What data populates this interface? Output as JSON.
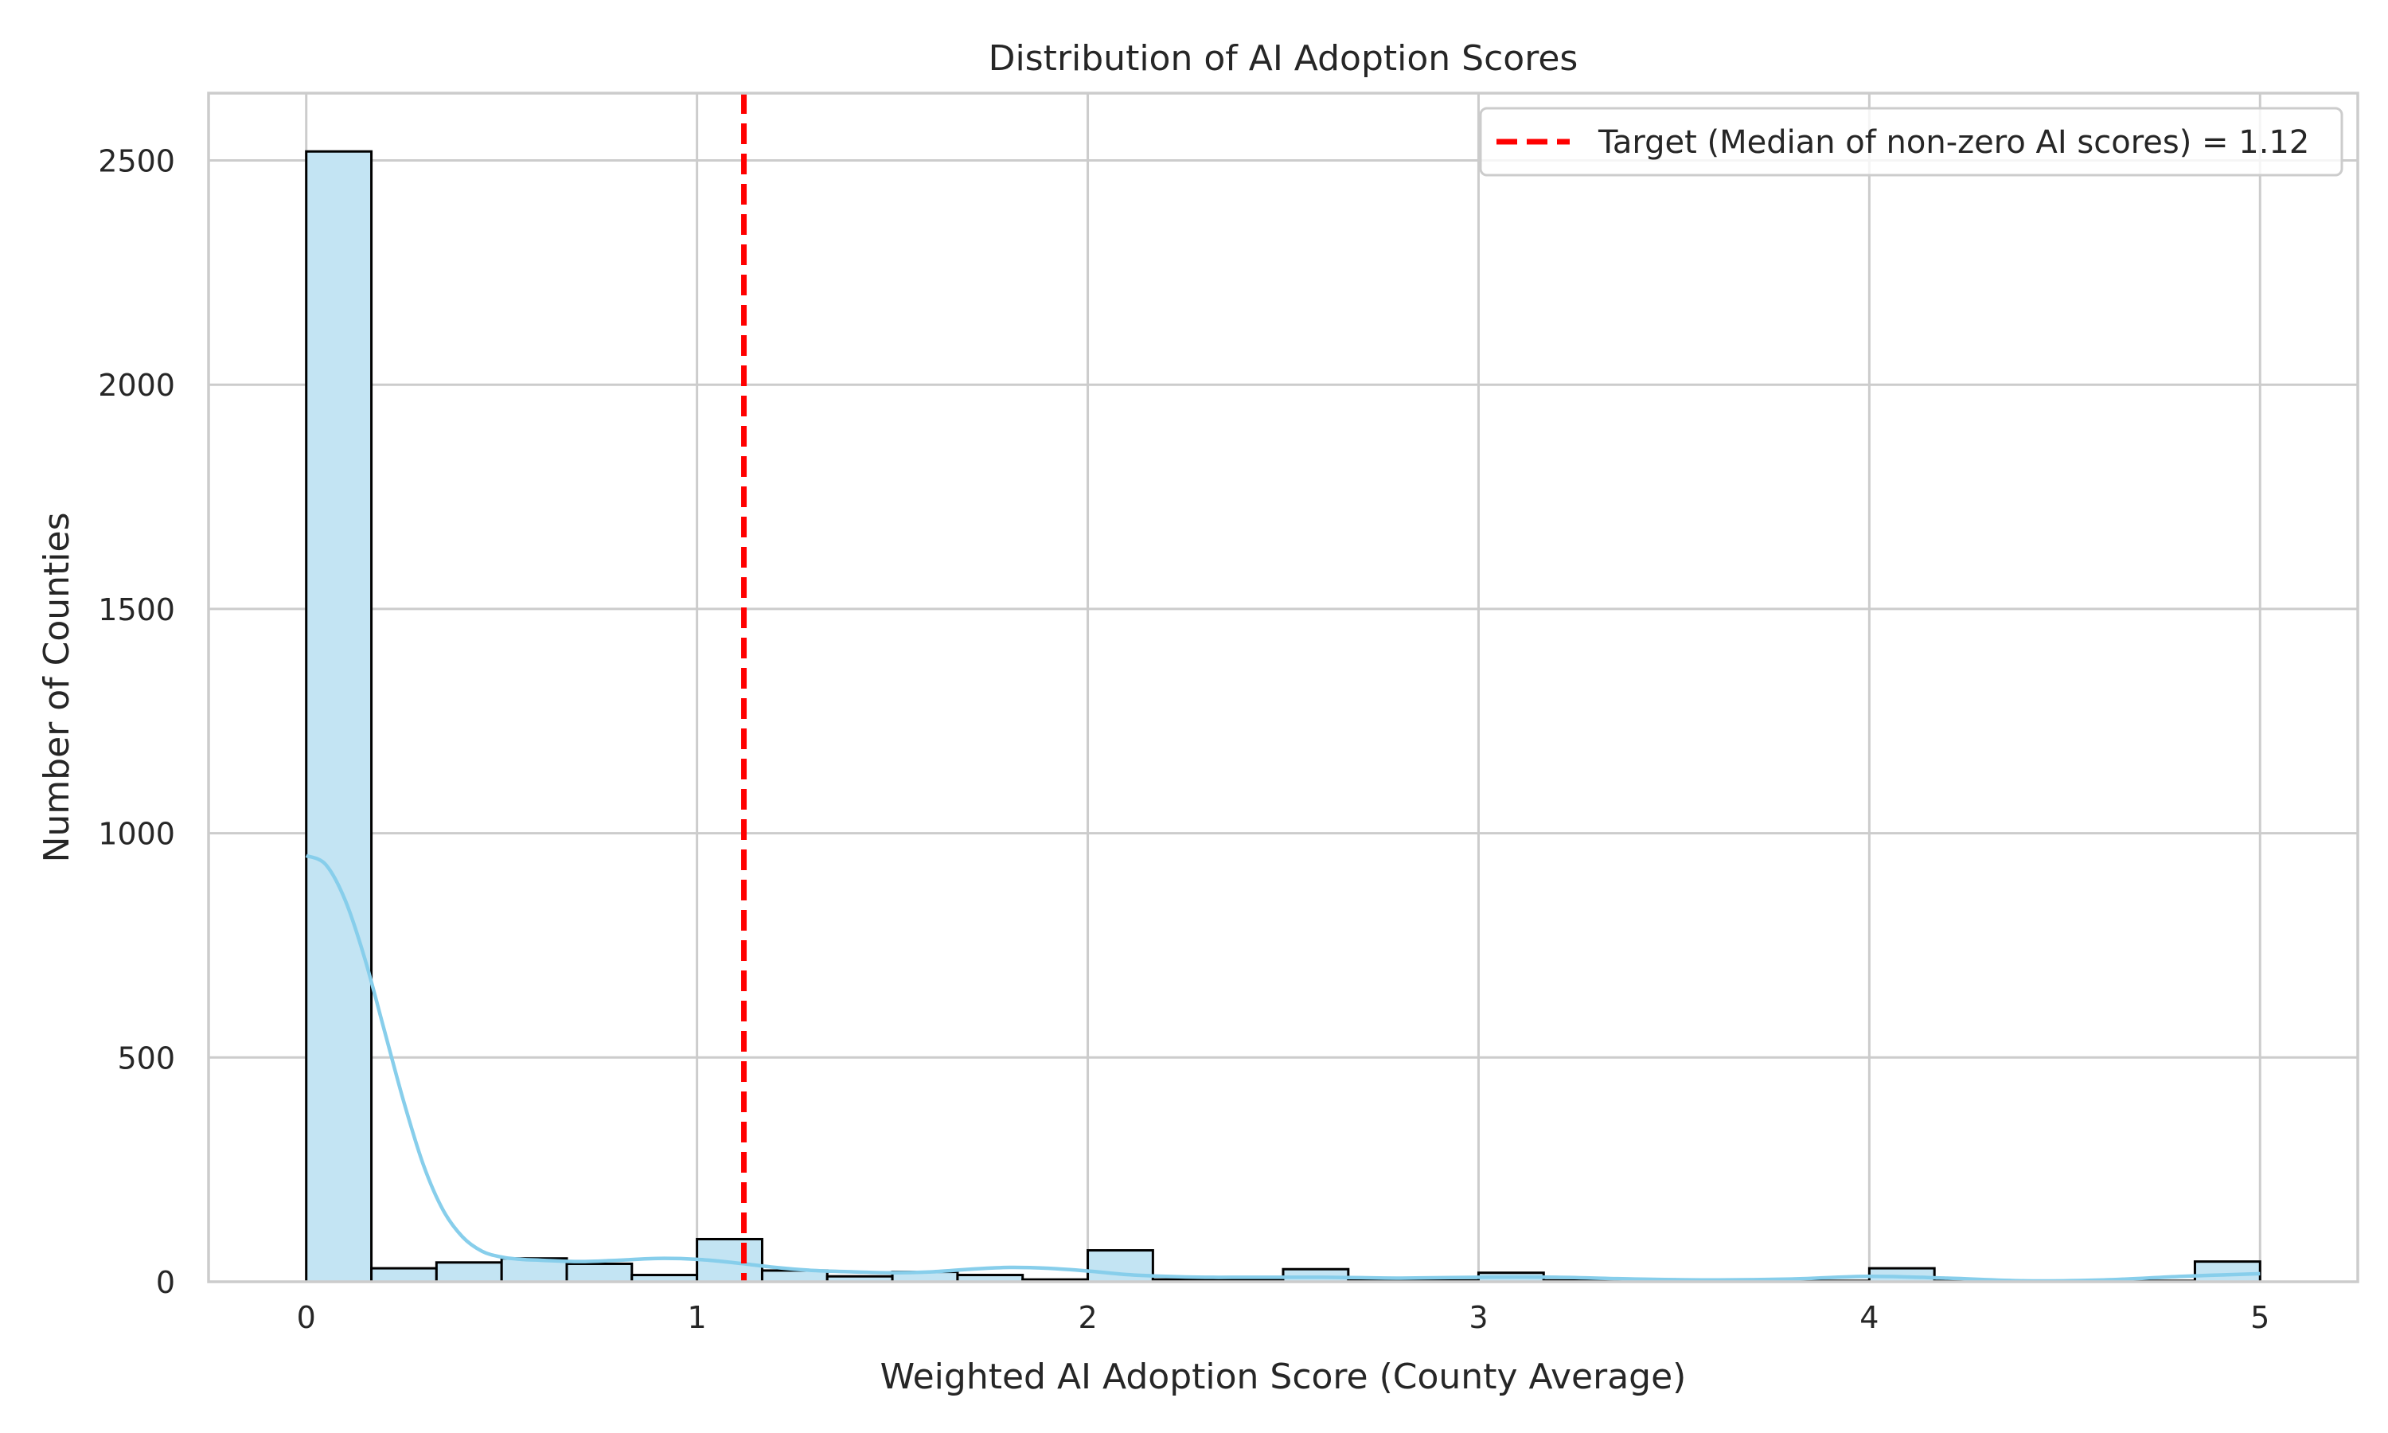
{
  "chart_data": {
    "type": "bar",
    "title": "Distribution of AI Adoption Scores",
    "xlabel": "Weighted AI Adoption Score (County Average)",
    "ylabel": "Number of Counties",
    "xlim": [
      -0.25,
      5.25
    ],
    "ylim": [
      0,
      2650
    ],
    "x_ticks": [
      0,
      1,
      2,
      3,
      4,
      5
    ],
    "y_ticks": [
      0,
      500,
      1000,
      1500,
      2000,
      2500
    ],
    "grid": true,
    "bin_width": 0.1667,
    "bins": [
      {
        "x0": 0.0,
        "x1": 0.1667,
        "count": 2520
      },
      {
        "x0": 0.1667,
        "x1": 0.3333,
        "count": 30
      },
      {
        "x0": 0.3333,
        "x1": 0.5,
        "count": 43
      },
      {
        "x0": 0.5,
        "x1": 0.6667,
        "count": 52
      },
      {
        "x0": 0.6667,
        "x1": 0.8333,
        "count": 40
      },
      {
        "x0": 0.8333,
        "x1": 1.0,
        "count": 15
      },
      {
        "x0": 1.0,
        "x1": 1.1667,
        "count": 95
      },
      {
        "x0": 1.1667,
        "x1": 1.3333,
        "count": 25
      },
      {
        "x0": 1.3333,
        "x1": 1.5,
        "count": 12
      },
      {
        "x0": 1.5,
        "x1": 1.6667,
        "count": 22
      },
      {
        "x0": 1.6667,
        "x1": 1.8333,
        "count": 15
      },
      {
        "x0": 1.8333,
        "x1": 2.0,
        "count": 5
      },
      {
        "x0": 2.0,
        "x1": 2.1667,
        "count": 70
      },
      {
        "x0": 2.1667,
        "x1": 2.3333,
        "count": 5
      },
      {
        "x0": 2.3333,
        "x1": 2.5,
        "count": 5
      },
      {
        "x0": 2.5,
        "x1": 2.6667,
        "count": 28
      },
      {
        "x0": 2.6667,
        "x1": 2.8333,
        "count": 3
      },
      {
        "x0": 2.8333,
        "x1": 3.0,
        "count": 3
      },
      {
        "x0": 3.0,
        "x1": 3.1667,
        "count": 20
      },
      {
        "x0": 3.1667,
        "x1": 3.3333,
        "count": 3
      },
      {
        "x0": 3.3333,
        "x1": 3.5,
        "count": 5
      },
      {
        "x0": 3.5,
        "x1": 3.6667,
        "count": 2
      },
      {
        "x0": 3.6667,
        "x1": 3.8333,
        "count": 2
      },
      {
        "x0": 3.8333,
        "x1": 4.0,
        "count": 2
      },
      {
        "x0": 4.0,
        "x1": 4.1667,
        "count": 30
      },
      {
        "x0": 4.1667,
        "x1": 4.3333,
        "count": 2
      },
      {
        "x0": 4.3333,
        "x1": 4.5,
        "count": 2
      },
      {
        "x0": 4.5,
        "x1": 4.6667,
        "count": 2
      },
      {
        "x0": 4.6667,
        "x1": 4.8333,
        "count": 2
      },
      {
        "x0": 4.8333,
        "x1": 5.0,
        "count": 45
      }
    ],
    "kde": {
      "x": [
        0.0,
        0.05,
        0.1,
        0.15,
        0.2,
        0.25,
        0.3,
        0.35,
        0.4,
        0.45,
        0.5,
        0.55,
        0.6,
        0.7,
        0.8,
        0.9,
        1.0,
        1.1,
        1.2,
        1.3,
        1.4,
        1.5,
        1.6,
        1.7,
        1.8,
        1.9,
        2.0,
        2.1,
        2.2,
        2.3,
        2.4,
        2.5,
        2.6,
        2.7,
        2.8,
        3.0,
        3.2,
        3.4,
        3.6,
        3.8,
        4.0,
        4.2,
        4.4,
        4.6,
        4.8,
        5.0
      ],
      "y": [
        950,
        930,
        850,
        720,
        560,
        400,
        260,
        160,
        100,
        68,
        55,
        50,
        48,
        45,
        48,
        52,
        50,
        42,
        32,
        25,
        22,
        20,
        22,
        28,
        32,
        30,
        24,
        16,
        12,
        10,
        10,
        10,
        10,
        9,
        8,
        10,
        10,
        6,
        4,
        6,
        12,
        8,
        2,
        4,
        12,
        18
      ]
    },
    "reference_line": {
      "x": 1.12,
      "color": "#ff0000",
      "style": "dashed"
    },
    "colors": {
      "bar_fill": "#c3e4f3",
      "bar_edge": "#000000",
      "kde": "#87ceeb",
      "grid": "#cccccc",
      "axes": "#cccccc"
    },
    "legend": {
      "placement": "top-right",
      "entries": [
        "Target (Median of non-zero AI scores) = 1.12"
      ]
    }
  }
}
